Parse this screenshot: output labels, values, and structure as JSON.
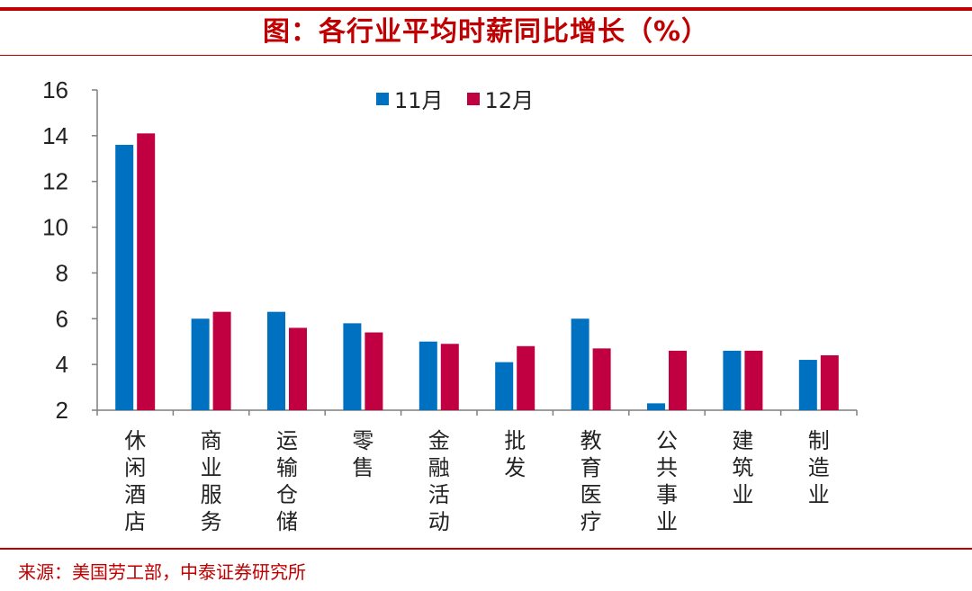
{
  "title": "图：各行业平均时薪同比增长（%）",
  "source": "来源：美国劳工部，中泰证券研究所",
  "colors": {
    "accent": "#c00000",
    "series_11": "#0070c0",
    "series_12": "#c00040"
  },
  "chart_data": {
    "type": "bar",
    "title": "图：各行业平均时薪同比增长（%）",
    "xlabel": "",
    "ylabel": "",
    "ylim": [
      2,
      16
    ],
    "yticks": [
      2,
      4,
      6,
      8,
      10,
      12,
      14,
      16
    ],
    "categories": [
      "休闲酒店",
      "商业服务",
      "运输仓储",
      "零售",
      "金融活动",
      "批发",
      "教育医疗",
      "公共事业",
      "建筑业",
      "制造业"
    ],
    "series": [
      {
        "name": "11月",
        "values": [
          13.6,
          6.0,
          6.3,
          5.8,
          5.0,
          4.1,
          6.0,
          2.3,
          4.6,
          4.2
        ]
      },
      {
        "name": "12月",
        "values": [
          14.1,
          6.3,
          5.6,
          5.4,
          4.9,
          4.8,
          4.7,
          4.6,
          4.6,
          4.4
        ]
      }
    ],
    "legend": "top-center",
    "grid": false
  }
}
